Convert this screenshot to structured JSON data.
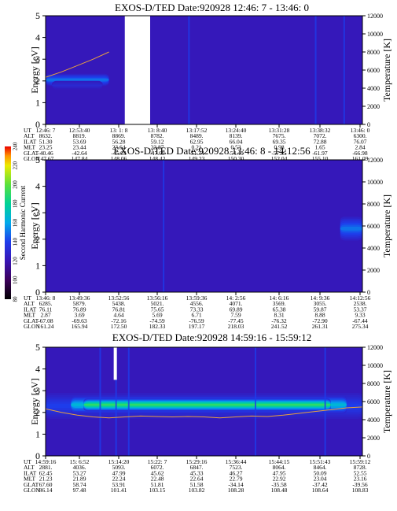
{
  "chart_data": [
    {
      "type": "heatmap",
      "title": "EXOS-D/TED   Date:920928  12:46: 7 - 13:46: 0",
      "ylabel": "Energy [eV]",
      "y2label": "Temperature [K]",
      "ylim": [
        0,
        5
      ],
      "y2lim": [
        0,
        12000
      ],
      "yticks": [
        "0",
        "1",
        "2",
        "3",
        "4",
        "5"
      ],
      "y2ticks": [
        "0",
        "2000",
        "4000",
        "6000",
        "8000",
        "10000",
        "12000"
      ],
      "data_gap": [
        0.25,
        0.33
      ],
      "bands": [
        {
          "x0": 0.0,
          "x1": 0.2,
          "e": 2.05,
          "w": 0.28,
          "lvl": 150
        },
        {
          "x0": 0.02,
          "x1": 0.18,
          "e": 1.8,
          "w": 0.2,
          "lvl": 130
        }
      ],
      "streaks": [
        0.45,
        0.85,
        0.94
      ],
      "temperature": [
        [
          0.0,
          5200
        ],
        [
          0.05,
          5800
        ],
        [
          0.1,
          6500
        ],
        [
          0.15,
          7200
        ],
        [
          0.2,
          8000
        ]
      ],
      "row_labels": [
        "UT",
        "ALT",
        "ILAT",
        "MLT",
        "GLAT",
        "GLON"
      ],
      "columns": [
        [
          "12:46: 7",
          "8632.",
          "51.30",
          "23.25",
          "-40.46",
          "147.67"
        ],
        [
          "12:53:40",
          "8819.",
          "53.69",
          "23.44",
          "-42.64",
          "147.84"
        ],
        [
          "13: 1: 8",
          "8869.",
          "56.28",
          "23.64",
          "-45.03",
          "148.06"
        ],
        [
          "13: 8:40",
          "8782.",
          "59.12",
          "23.87",
          "-47.69",
          "148.42"
        ],
        [
          "13:17:52",
          "8489.",
          "62.95",
          "0.21",
          "-51.34",
          "149.23"
        ],
        [
          "13:24:40",
          "8139.",
          "66.04",
          "0.53",
          "-54.40",
          "150.30"
        ],
        [
          "13:31:28",
          "7675.",
          "69.35",
          "0.98",
          "-57.85",
          "152.04"
        ],
        [
          "13:38:32",
          "7072.",
          "72.88",
          "1.65",
          "-61.97",
          "155.10"
        ],
        [
          "13:46: 0",
          "6300.",
          "76.07",
          "2.84",
          "-66.98",
          "161.09"
        ]
      ]
    },
    {
      "type": "heatmap",
      "title": "EXOS-D/TED   Date:920928  13:46: 8 - 14:12:56",
      "ylabel": "Energy [eV]",
      "y2label": "Temperature [K]",
      "ylim": [
        0,
        5
      ],
      "y2lim": [
        0,
        12000
      ],
      "yticks": [
        "0",
        "1",
        "2",
        "3",
        "4",
        "5"
      ],
      "y2ticks": [
        "0",
        "2000",
        "4000",
        "6000",
        "8000",
        "10000",
        "12000"
      ],
      "bands": [
        {
          "x0": 0.93,
          "x1": 1.0,
          "e": 2.4,
          "w": 0.45,
          "lvl": 150
        }
      ],
      "streaks": [
        0.37
      ],
      "temperature": [],
      "row_labels": [
        "UT",
        "ALT",
        "ILAT",
        "MLT",
        "GLAT",
        "GLON"
      ],
      "columns": [
        [
          "13:46: 8",
          "6285.",
          "76.11",
          "2.87",
          "-67.08",
          "161.24"
        ],
        [
          "13:49:36",
          "5879.",
          "76.89",
          "3.69",
          "-69.63",
          "165.94"
        ],
        [
          "13:52:56",
          "5438.",
          "76.81",
          "4.64",
          "-72.16",
          "172.50"
        ],
        [
          "13:56:16",
          "5021.",
          "75.65",
          "5.69",
          "-74.59",
          "182.33"
        ],
        [
          "13:59:36",
          "4556.",
          "73.33",
          "6.71",
          "-76.59",
          "197.17"
        ],
        [
          "14: 2:56",
          "4071.",
          "69.89",
          "7.59",
          "-77.45",
          "218.03"
        ],
        [
          "14: 6:16",
          "3569.",
          "65.38",
          "8.31",
          "-76.32",
          "241.52"
        ],
        [
          "14: 9:36",
          "3055.",
          "59.87",
          "8.88",
          "-72.90",
          "261.31"
        ],
        [
          "14:12:56",
          "2538.",
          "53.37",
          "9.33",
          "-67.44",
          "275.34"
        ]
      ]
    },
    {
      "type": "heatmap",
      "title": "EXOS-D/TED   Date:920928  14:59:16 - 15:59:12",
      "ylabel": "Energy [eV]",
      "y2label": "Temperature [K]",
      "ylim": [
        0,
        5
      ],
      "y2lim": [
        0,
        12000
      ],
      "yticks": [
        "0",
        "1",
        "2",
        "3",
        "4",
        "5"
      ],
      "y2ticks": [
        "0",
        "2000",
        "4000",
        "6000",
        "8000",
        "10000",
        "12000"
      ],
      "white_gap": [
        0.215,
        0.225
      ],
      "bands": [
        {
          "x0": 0.0,
          "x1": 1.0,
          "e": 2.3,
          "w": 0.6,
          "lvl": 140
        },
        {
          "x0": 0.08,
          "x1": 0.95,
          "e": 2.35,
          "w": 0.42,
          "lvl": 165
        },
        {
          "x0": 0.12,
          "x1": 0.9,
          "e": 2.35,
          "w": 0.3,
          "lvl": 190
        }
      ],
      "streaks": [
        0.17,
        0.22,
        0.26,
        0.66,
        0.88
      ],
      "temperature": [
        [
          0.0,
          5200
        ],
        [
          0.05,
          4800
        ],
        [
          0.1,
          4500
        ],
        [
          0.15,
          4300
        ],
        [
          0.2,
          4200
        ],
        [
          0.25,
          4300
        ],
        [
          0.3,
          4400
        ],
        [
          0.35,
          4350
        ],
        [
          0.4,
          4300
        ],
        [
          0.45,
          4350
        ],
        [
          0.5,
          4300
        ],
        [
          0.55,
          4200
        ],
        [
          0.6,
          4300
        ],
        [
          0.65,
          4400
        ],
        [
          0.7,
          4350
        ],
        [
          0.75,
          4500
        ],
        [
          0.8,
          4700
        ],
        [
          0.85,
          4900
        ],
        [
          0.9,
          5100
        ],
        [
          0.95,
          5300
        ],
        [
          1.0,
          5400
        ]
      ],
      "row_labels": [
        "UT",
        "ALT",
        "ILAT",
        "MLT",
        "GLAT",
        "GLON"
      ],
      "columns": [
        [
          "14:59:16",
          "2881.",
          "62.45",
          "21.23",
          "67.60",
          "86.14"
        ],
        [
          "15: 6:52",
          "4036.",
          "53.27",
          "21.89",
          "58.74",
          "97.48"
        ],
        [
          "15:14:20",
          "5093.",
          "47.99",
          "22.24",
          "53.91",
          "101.41"
        ],
        [
          "15:22: 7",
          "6072.",
          "45.62",
          "22.48",
          "51.81",
          "103.15"
        ],
        [
          "15:29:16",
          "6847.",
          "45.33",
          "22.64",
          "51.58",
          "103.82"
        ],
        [
          "15:36:44",
          "7523.",
          "46.27",
          "22.79",
          "-34.14",
          "108.28"
        ],
        [
          "15:44:15",
          "8064.",
          "47.95",
          "22.92",
          "-35.58",
          "108.48"
        ],
        [
          "15:51:43",
          "8464.",
          "50.09",
          "23.04",
          "-37.42",
          "108.64"
        ],
        [
          "15:59:12",
          "8728.",
          "52.55",
          "23.16",
          "-39.56",
          "108.83"
        ]
      ]
    }
  ],
  "colorbar": {
    "label": "Second Harmonic Current",
    "min": 80,
    "max": 240,
    "ticks": [
      "80",
      "100",
      "120",
      "140",
      "160",
      "180",
      "200",
      "220",
      "240"
    ]
  }
}
